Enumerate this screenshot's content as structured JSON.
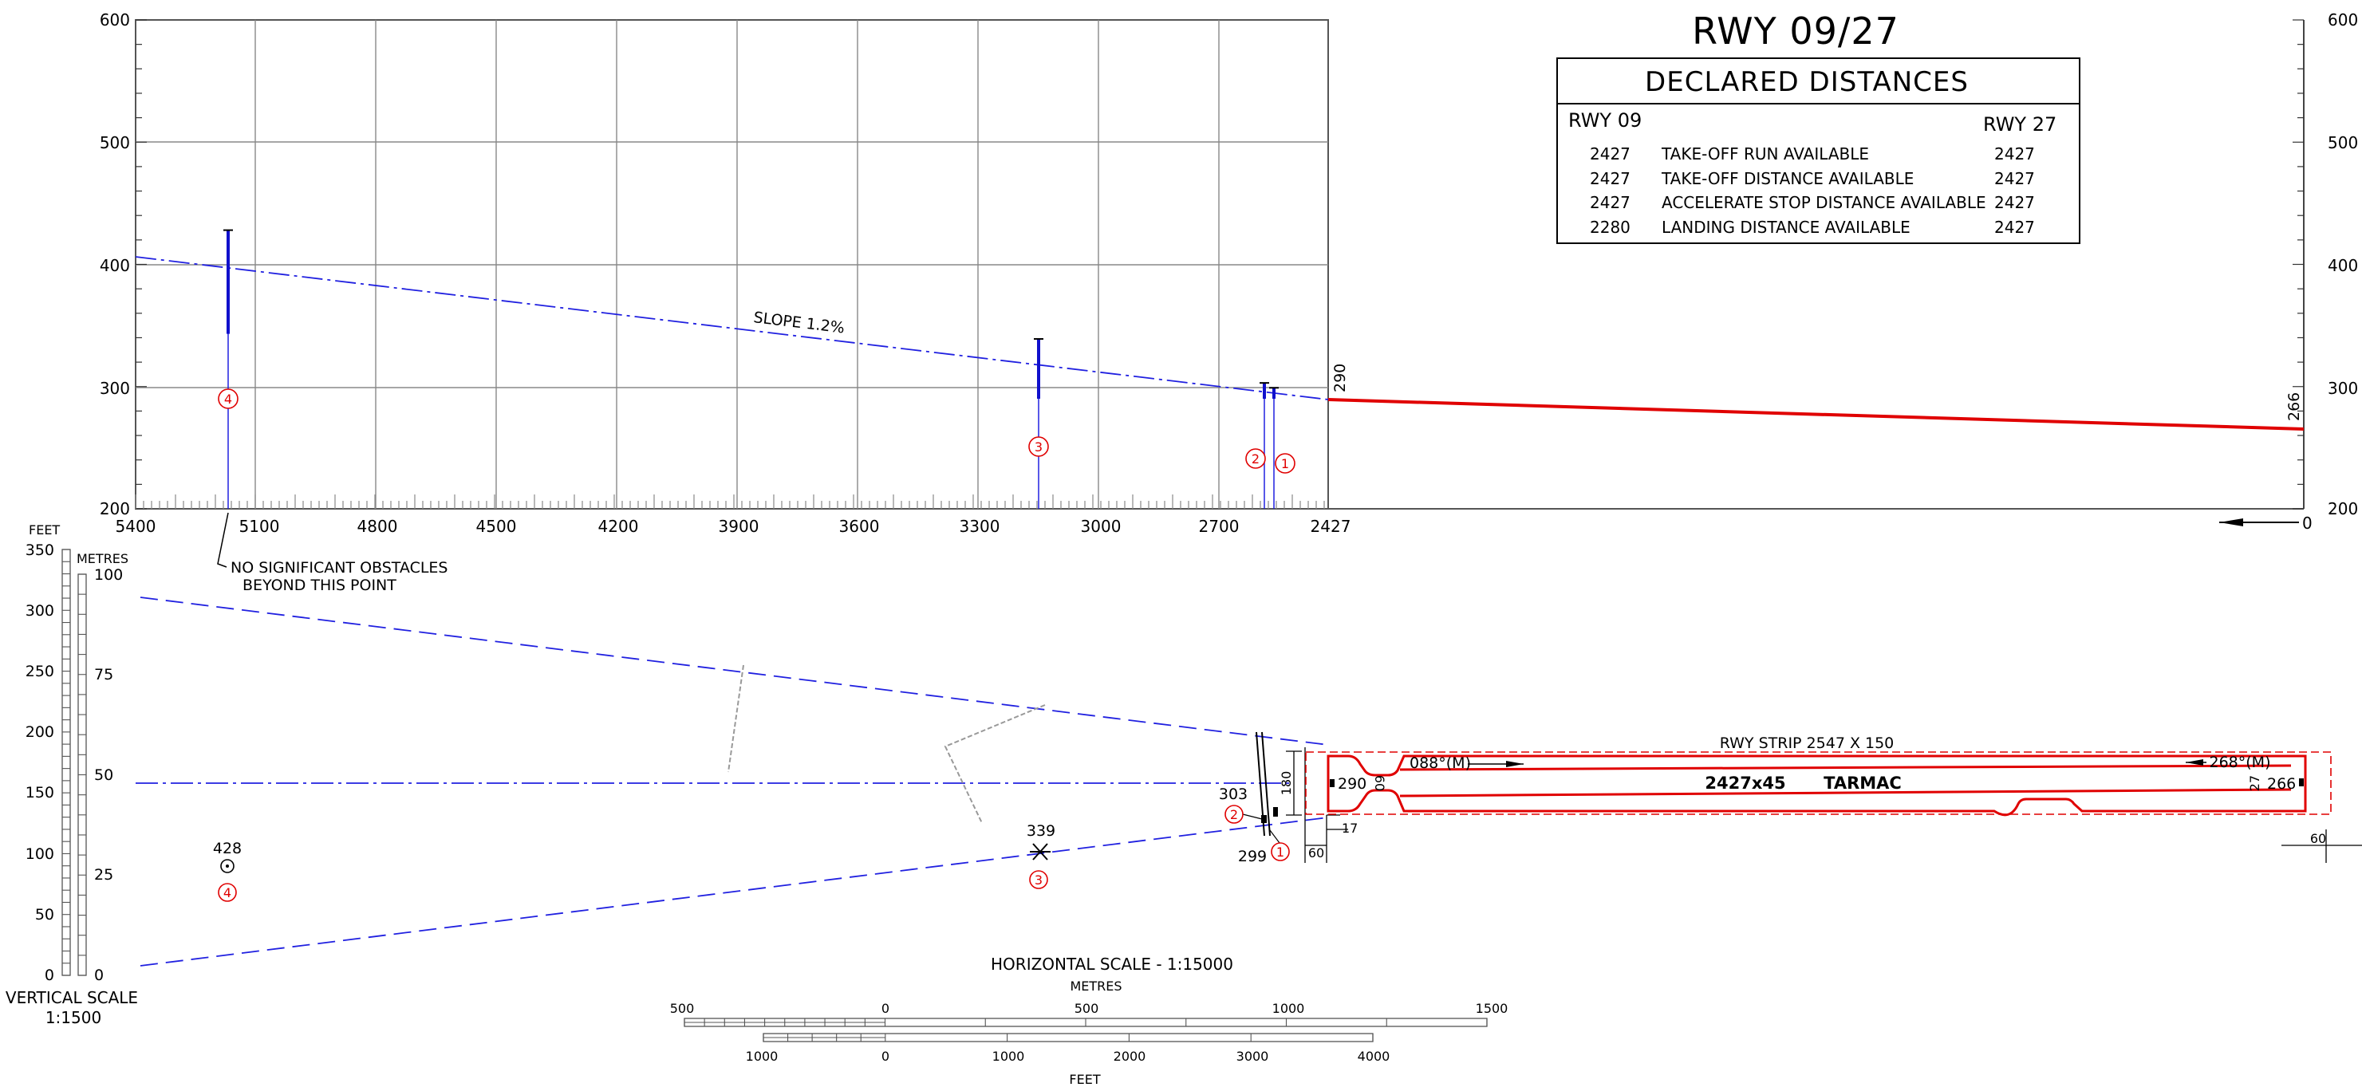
{
  "title": "RWY 09/27",
  "declared_distances": {
    "heading": "DECLARED DISTANCES",
    "col_left": "RWY 09",
    "col_right": "RWY 27",
    "rows": [
      {
        "left": "2427",
        "label": "TAKE-OFF RUN AVAILABLE",
        "right": "2427"
      },
      {
        "left": "2427",
        "label": "TAKE-OFF DISTANCE AVAILABLE",
        "right": "2427"
      },
      {
        "left": "2427",
        "label": "ACCELERATE STOP DISTANCE AVAILABLE",
        "right": "2427"
      },
      {
        "left": "2280",
        "label": "LANDING DISTANCE AVAILABLE",
        "right": "2427"
      }
    ]
  },
  "profile": {
    "y_ticks": [
      "600",
      "500",
      "400",
      "300",
      "200"
    ],
    "y_ticks_right": [
      "600",
      "500",
      "400",
      "300",
      "200"
    ],
    "x_ticks": [
      "5400",
      "5100",
      "4800",
      "4500",
      "4200",
      "3900",
      "3600",
      "3300",
      "3000",
      "2700",
      "2427"
    ],
    "end_tick": "0",
    "slope_label": "SLOPE 1.2%",
    "elev_left": "290",
    "elev_right": "266",
    "obstacles": [
      {
        "id": "4",
        "top": 428
      },
      {
        "id": "3",
        "top": 339
      },
      {
        "id": "2",
        "top": 303
      },
      {
        "id": "1",
        "top": 299
      }
    ]
  },
  "note": {
    "line1": "NO SIGNIFICANT OBSTACLES",
    "line2": "BEYOND THIS POINT"
  },
  "vertical_scale": {
    "feet_label": "FEET",
    "metres_label": "METRES",
    "feet_ticks": [
      "350",
      "300",
      "250",
      "200",
      "150",
      "100",
      "50",
      "0"
    ],
    "metre_ticks": [
      "100",
      "75",
      "50",
      "25",
      "0"
    ],
    "caption": "VERTICAL SCALE",
    "ratio": "1:1500"
  },
  "plan": {
    "obstacles": [
      {
        "id": "4",
        "elev": "428"
      },
      {
        "id": "3",
        "elev": "339"
      },
      {
        "id": "2",
        "elev": "303"
      },
      {
        "id": "1",
        "elev": "299"
      }
    ],
    "dim_180": "180",
    "dim_17": "17",
    "dim_60a": "60",
    "dim_60b": "60",
    "dim_60c": "60",
    "dim_27": "27",
    "thr_left_elev": "290",
    "thr_right_elev": "266",
    "strip_label": "RWY STRIP 2547 X 150",
    "runway_dims": "2427x45",
    "surface": "TARMAC",
    "hdg_left": "088°(M)",
    "hdg_right": "268°(M)"
  },
  "horizontal_scale": {
    "caption": "HORIZONTAL SCALE - 1:15000",
    "metres_label": "METRES",
    "feet_label": "FEET",
    "metre_ticks": [
      "500",
      "0",
      "500",
      "1000",
      "1500"
    ],
    "feet_ticks": [
      "1000",
      "0",
      "1000",
      "2000",
      "3000",
      "4000"
    ]
  }
}
